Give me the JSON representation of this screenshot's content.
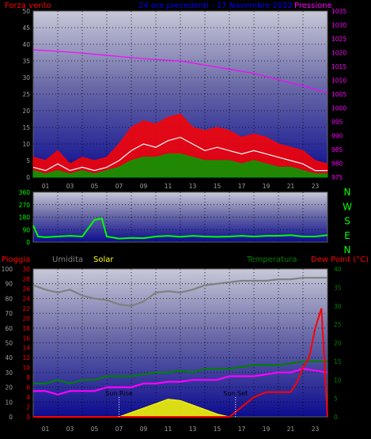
{
  "colors": {
    "wind": "#ff0000",
    "gust_avg": "#ffffff",
    "wind_avg": "#00a000",
    "pressure": "#ff00ff",
    "direction": "#00ff00",
    "rain": "#ff0000",
    "humidity": "#808080",
    "solar": "#ffff00",
    "temperature": "#008000",
    "dewpoint": "#ff00ff",
    "header_blue": "#0000ff",
    "axis": "#a0a0a0"
  },
  "chart_data": [
    {
      "type": "line",
      "panel": "wind-pressure",
      "title": "24 ore precedenti - 17 Novembre 2022",
      "left_label": "Forza vento",
      "right_label": "Pressione",
      "x_ticks": [
        "01",
        "03",
        "05",
        "07",
        "09",
        "11",
        "13",
        "15",
        "17",
        "19",
        "21",
        "23"
      ],
      "y_left_ticks": [
        "0",
        "5",
        "10",
        "15",
        "20",
        "25",
        "30",
        "35",
        "40",
        "45",
        "50"
      ],
      "y_left_range": [
        0,
        50
      ],
      "y_right_ticks": [
        "975",
        "980",
        "985",
        "990",
        "995",
        "1000",
        "1005",
        "1010",
        "1015",
        "1020",
        "1025",
        "1030",
        "1035"
      ],
      "y_right_range": [
        975,
        1035
      ],
      "x_range_hours": [
        0,
        24
      ],
      "series": [
        {
          "key": "pressure",
          "x": [
            0,
            2,
            4,
            6,
            8,
            10,
            12,
            14,
            16,
            18,
            20,
            22,
            24
          ],
          "values": [
            1021,
            1020.5,
            1019.8,
            1019,
            1018.2,
            1017.5,
            1017,
            1015.5,
            1014,
            1012.5,
            1010.2,
            1008,
            1005.5
          ]
        },
        {
          "key": "gust",
          "x": [
            0,
            1,
            2,
            3,
            4,
            5,
            6,
            7,
            8,
            9,
            10,
            11,
            12,
            13,
            14,
            15,
            16,
            17,
            18,
            19,
            20,
            21,
            22,
            23,
            24
          ],
          "values": [
            6,
            5,
            8,
            4,
            6,
            5,
            6,
            10,
            15,
            17,
            16,
            18,
            19,
            15,
            14,
            15,
            14,
            12,
            13,
            12,
            10,
            9,
            8,
            5,
            4
          ]
        },
        {
          "key": "gust_avg",
          "x": [
            0,
            1,
            2,
            3,
            4,
            5,
            6,
            7,
            8,
            9,
            10,
            11,
            12,
            13,
            14,
            15,
            16,
            17,
            18,
            19,
            20,
            21,
            22,
            23,
            24
          ],
          "values": [
            3,
            2,
            4,
            2,
            3,
            2,
            3,
            5,
            8,
            10,
            9,
            11,
            12,
            10,
            8,
            9,
            8,
            7,
            8,
            7,
            6,
            5,
            4,
            2,
            2
          ]
        },
        {
          "key": "wind_avg",
          "x": [
            0,
            1,
            2,
            3,
            4,
            5,
            6,
            7,
            8,
            9,
            10,
            11,
            12,
            13,
            14,
            15,
            16,
            17,
            18,
            19,
            20,
            21,
            22,
            23,
            24
          ],
          "values": [
            2,
            1,
            2,
            1,
            2,
            1,
            2,
            3,
            5,
            6,
            6,
            7,
            7,
            6,
            5,
            5,
            5,
            4,
            5,
            4,
            3,
            3,
            2,
            1,
            1
          ]
        }
      ]
    },
    {
      "type": "line",
      "panel": "direction",
      "y_left_ticks": [
        "0",
        "90",
        "180",
        "270",
        "360"
      ],
      "y_left_range": [
        0,
        360
      ],
      "compass_labels": [
        "N",
        "W",
        "S",
        "E",
        "N"
      ],
      "x_range_hours": [
        0,
        24
      ],
      "series": [
        {
          "key": "direction",
          "x": [
            0,
            0.4,
            1,
            2,
            3,
            4,
            5,
            5.6,
            6,
            7,
            8,
            9,
            10,
            11,
            12,
            13,
            14,
            15,
            16,
            17,
            18,
            19,
            20,
            21,
            22,
            23,
            24
          ],
          "values": [
            120,
            40,
            35,
            40,
            45,
            40,
            160,
            170,
            40,
            25,
            30,
            28,
            40,
            45,
            38,
            45,
            40,
            38,
            40,
            45,
            40,
            45,
            45,
            50,
            40,
            40,
            50
          ]
        }
      ]
    },
    {
      "type": "line",
      "panel": "temperature",
      "legend": [
        "Pioggia",
        "Umidita",
        "Solar",
        "Temperatura",
        "Dew Point (°C)"
      ],
      "x_ticks": [
        "01",
        "03",
        "05",
        "07",
        "09",
        "11",
        "13",
        "15",
        "17",
        "19",
        "21",
        "23"
      ],
      "humidity_ticks": [
        "0",
        "10",
        "20",
        "30",
        "40",
        "50",
        "60",
        "70",
        "80",
        "90",
        "100"
      ],
      "rain_ticks": [
        "0",
        "2",
        "4",
        "6",
        "8",
        "10",
        "12",
        "14",
        "16",
        "18",
        "20",
        "22",
        "24",
        "26",
        "28",
        "30"
      ],
      "temp_ticks": [
        "0",
        "5",
        "10",
        "15",
        "20",
        "25",
        "30",
        "35",
        "40"
      ],
      "humidity_range": [
        0,
        100
      ],
      "rain_range": [
        0,
        30
      ],
      "temp_range": [
        0,
        40
      ],
      "x_range_hours": [
        0,
        24
      ],
      "annotations": [
        {
          "label": "Sun Rise",
          "x": 7.0
        },
        {
          "label": "Sun Set",
          "x": 16.5
        }
      ],
      "series": [
        {
          "key": "humidity",
          "x": [
            0,
            1,
            2,
            3,
            4,
            5,
            6,
            7,
            8,
            9,
            10,
            11,
            12,
            13,
            14,
            15,
            16,
            17,
            18,
            19,
            20,
            21,
            22,
            23,
            24
          ],
          "values": [
            89,
            86,
            84,
            86,
            82,
            80,
            79,
            76,
            75,
            78,
            84,
            85,
            84,
            86,
            89,
            90,
            91,
            92,
            92,
            92,
            93,
            93,
            94,
            94,
            94
          ]
        },
        {
          "key": "temperature",
          "x": [
            0,
            1,
            2,
            3,
            4,
            5,
            6,
            7,
            8,
            9,
            10,
            11,
            12,
            13,
            14,
            15,
            16,
            17,
            18,
            19,
            20,
            21,
            22,
            23,
            24
          ],
          "values": [
            9,
            9,
            10,
            9,
            10,
            10,
            11,
            11,
            11,
            11.5,
            12,
            12,
            12.5,
            12,
            13,
            13,
            13,
            13.5,
            14,
            14,
            14,
            14.5,
            15,
            15,
            15
          ]
        },
        {
          "key": "dewpoint",
          "x": [
            0,
            1,
            2,
            3,
            4,
            5,
            6,
            7,
            8,
            9,
            10,
            11,
            12,
            13,
            14,
            15,
            16,
            17,
            18,
            19,
            20,
            21,
            22,
            23,
            24
          ],
          "values": [
            7,
            7,
            6,
            7,
            7,
            7,
            8,
            8,
            8,
            9,
            9,
            9.5,
            9.5,
            10,
            10,
            10,
            11,
            11,
            11,
            11.5,
            12,
            12,
            13,
            12.5,
            12
          ]
        },
        {
          "key": "rain",
          "x": [
            0,
            16,
            17,
            18,
            19,
            20,
            21,
            21.5,
            22,
            22.5,
            23,
            23.5,
            24
          ],
          "values": [
            0,
            0,
            2,
            4,
            5,
            5,
            5,
            7,
            10,
            12,
            18,
            22,
            0
          ]
        },
        {
          "key": "solar",
          "x": [
            7,
            8,
            9,
            10,
            11,
            12,
            13,
            14,
            15,
            16
          ],
          "values": [
            0,
            3,
            6,
            9,
            12,
            11,
            8,
            5,
            2,
            0
          ]
        }
      ]
    }
  ]
}
